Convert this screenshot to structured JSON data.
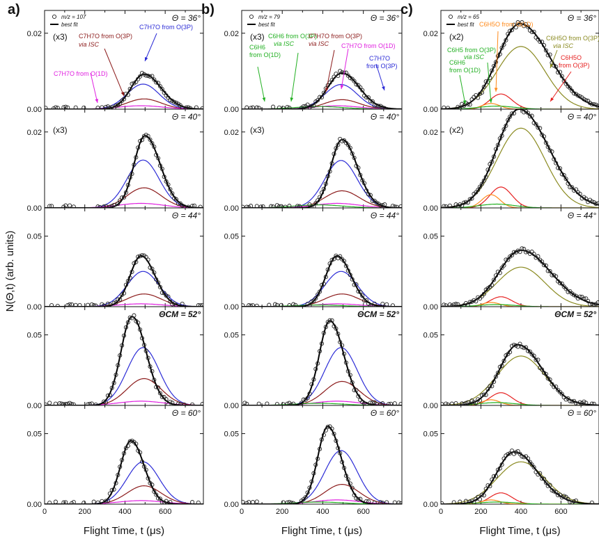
{
  "chart_data": {
    "type": "scatter",
    "xlabel": "Flight Time, t (μs)",
    "ylabel": "N(Θ,t) (arb. units)",
    "x_ticks": [
      "0",
      "200",
      "400",
      "600"
    ],
    "x_range": [
      0,
      790
    ],
    "row_ylim": [
      [
        0,
        0.026
      ],
      [
        0,
        0.026
      ],
      [
        0,
        0.07
      ],
      [
        0,
        0.07
      ],
      [
        0,
        0.07
      ]
    ],
    "row_yticks": [
      [
        "0.00",
        "0.02"
      ],
      [
        "0.00",
        "0.02"
      ],
      [
        "0.00",
        "0.05"
      ],
      [
        "0.00",
        "0.05"
      ],
      [
        "0.00",
        "0.05"
      ]
    ],
    "rows": [
      {
        "angle": "Θ = 36°"
      },
      {
        "angle": "Θ = 40°"
      },
      {
        "angle": "Θ = 44°"
      },
      {
        "angle": "ΘCM = 52°",
        "bold": true
      },
      {
        "angle": "Θ = 60°"
      }
    ],
    "colors": {
      "fit": "#000000",
      "blue": "#2b2bd6",
      "brown": "#8b1a1a",
      "magenta": "#e020e0",
      "green": "#22b022",
      "orange": "#ff8a1a",
      "olive": "#8a8a20",
      "red": "#e62020"
    },
    "panels": [
      {
        "letter": "a)",
        "legend_points": "m/z = 107",
        "legend_fit": "best fit",
        "multipliers": [
          "(x3)",
          "(x3)",
          "",
          "",
          ""
        ],
        "annotations": [
          {
            "text": "C7H7O from O(3P)",
            "color": "#8b1a1a"
          },
          {
            "text": "via ISC",
            "color": "#8b1a1a"
          },
          {
            "text": "C7H7O from O(3P)",
            "color": "#2b2bd6"
          },
          {
            "text": "C7H7O from O(1D)",
            "color": "#e020e0"
          }
        ],
        "components": [
          {
            "color": "blue",
            "center": 490,
            "width": 80,
            "amp": [
              0.0066,
              0.0126,
              0.025,
              0.041,
              0.03
            ]
          },
          {
            "color": "brown",
            "center": 495,
            "width": 85,
            "amp": [
              0.0027,
              0.0053,
              0.009,
              0.019,
              0.013
            ]
          },
          {
            "color": "magenta",
            "center": 480,
            "width": 110,
            "amp": [
              0.0009,
              0.0012,
              0.002,
              0.003,
              0.0025
            ]
          }
        ],
        "fit_peak": [
          0.0092,
          0.019,
          0.036,
          0.063,
          0.045
        ]
      },
      {
        "letter": "b)",
        "legend_points": "m/z = 79",
        "legend_fit": "best fit",
        "multipliers": [
          "(x3)",
          "(x3)",
          "",
          "",
          ""
        ],
        "annotations": [
          {
            "text": "C6H6",
            "color": "#22b022"
          },
          {
            "text": "from O(1D)",
            "color": "#22b022"
          },
          {
            "text": "C6H6 from O(3P)",
            "color": "#22b022"
          },
          {
            "text": "via ISC",
            "color": "#22b022"
          },
          {
            "text": "C7H7O from O(3P)",
            "color": "#8b1a1a"
          },
          {
            "text": "via ISC",
            "color": "#8b1a1a"
          },
          {
            "text": "C7H7O from O(1D)",
            "color": "#e020e0"
          },
          {
            "text": "C7H7O",
            "color": "#2b2bd6"
          },
          {
            "text": "from O(3P)",
            "color": "#2b2bd6"
          }
        ],
        "components": [
          {
            "color": "blue",
            "center": 490,
            "width": 80,
            "amp": [
              0.0065,
              0.0125,
              0.025,
              0.041,
              0.038
            ]
          },
          {
            "color": "brown",
            "center": 495,
            "width": 85,
            "amp": [
              0.0025,
              0.0045,
              0.009,
              0.017,
              0.014
            ]
          },
          {
            "color": "magenta",
            "center": 470,
            "width": 110,
            "amp": [
              0.0009,
              0.0012,
              0.002,
              0.003,
              0.003
            ]
          },
          {
            "color": "green",
            "center": 380,
            "width": 120,
            "amp": [
              0.0007,
              0.0008,
              0.0012,
              0.0015,
              0.0015
            ]
          }
        ],
        "fit_peak": [
          0.0095,
          0.018,
          0.036,
          0.06,
          0.055
        ]
      },
      {
        "letter": "c)",
        "legend_points": "m/z = 65",
        "legend_fit": "best fit",
        "multipliers": [
          "(x2)",
          "(x2)",
          "",
          "",
          ""
        ],
        "annotations": [
          {
            "text": "C6H5O from O(1D)",
            "color": "#ff8a1a"
          },
          {
            "text": "C6H5O from O(3P)",
            "color": "#8a8a20"
          },
          {
            "text": "via ISC",
            "color": "#8a8a20"
          },
          {
            "text": "C6H5 from O(3P)",
            "color": "#22b022"
          },
          {
            "text": "via ISC",
            "color": "#22b022"
          },
          {
            "text": "C6H6",
            "color": "#22b022"
          },
          {
            "text": "from O(1D)",
            "color": "#22b022"
          },
          {
            "text": "C6H5O",
            "color": "#e62020"
          },
          {
            "text": "from O(3P)",
            "color": "#e62020"
          }
        ],
        "components": [
          {
            "color": "olive",
            "center": 400,
            "width": 120,
            "amp": [
              0.0165,
              0.021,
              0.028,
              0.035,
              0.03
            ]
          },
          {
            "color": "red",
            "center": 300,
            "width": 55,
            "amp": [
              0.004,
              0.0055,
              0.007,
              0.009,
              0.008
            ]
          },
          {
            "color": "orange",
            "center": 250,
            "width": 45,
            "amp": [
              0.0015,
              0.0035,
              0.003,
              0.004,
              0.003
            ]
          },
          {
            "color": "green",
            "center": 280,
            "width": 90,
            "amp": [
              0.0008,
              0.001,
              0.0015,
              0.002,
              0.0015
            ]
          }
        ],
        "fit_peak": [
          0.0225,
          0.026,
          0.04,
          0.043,
          0.037
        ]
      }
    ]
  }
}
